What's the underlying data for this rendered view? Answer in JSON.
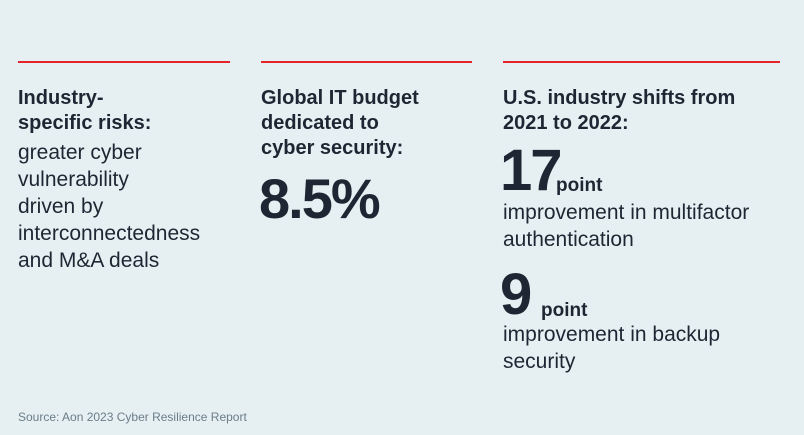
{
  "col1": {
    "heading": "Industry-\nspecific risks:",
    "heading_line1": "Industry-",
    "heading_line2": "specific risks:",
    "body_lines": [
      "greater cyber",
      "vulnerability",
      "driven by",
      "interconnectedness",
      "and M&A deals"
    ]
  },
  "col2": {
    "heading_line1": "Global IT budget",
    "heading_line2": "dedicated to",
    "heading_line3": "cyber security:",
    "stat": "8.5%"
  },
  "col3": {
    "heading_line1": "U.S. industry shifts from",
    "heading_line2": "2021 to 2022:",
    "items": [
      {
        "value": "17",
        "unit": "point",
        "line1": "improvement in multifactor",
        "line2": "authentication"
      },
      {
        "value": "9",
        "unit": "point",
        "line1": "improvement in backup",
        "line2": "security"
      }
    ]
  },
  "source": "Source: Aon 2023 Cyber Resilience Report",
  "colors": {
    "background": "#e6f0f3",
    "accent_rule": "#e4262c",
    "text": "#1f2633"
  }
}
